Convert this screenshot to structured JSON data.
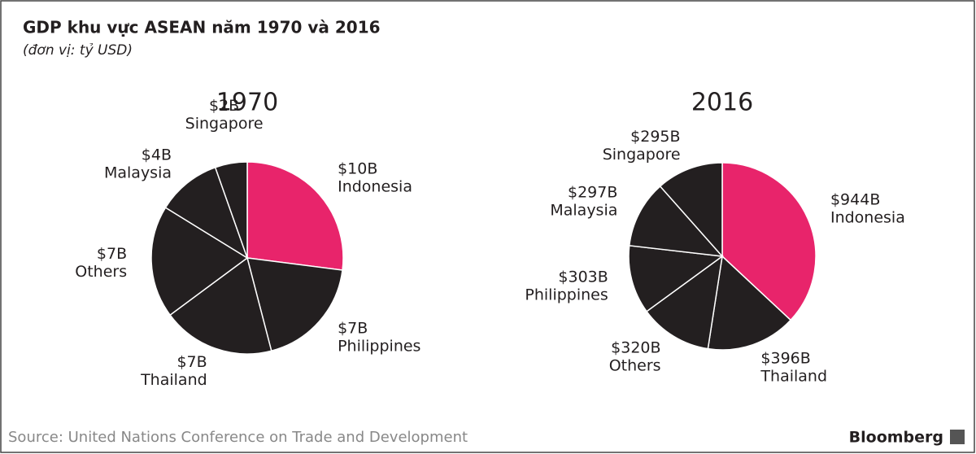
{
  "title": "GDP khu vực ASEAN năm 1970 và 2016",
  "subtitle": "(đơn vị: tỷ USD)",
  "source": "Source: United Nations Conference on Trade and Development",
  "brand": "Bloomberg",
  "chart_data": [
    {
      "type": "pie",
      "title": "1970",
      "categories": [
        "Indonesia",
        "Philippines",
        "Thailand",
        "Others",
        "Malaysia",
        "Singapore"
      ],
      "values": [
        10,
        7,
        7,
        7,
        4,
        2
      ],
      "value_labels": [
        "$10B",
        "$7B",
        "$7B",
        "$7B",
        "$4B",
        "$2B"
      ],
      "colors": [
        "#e8246b",
        "#231f20",
        "#231f20",
        "#231f20",
        "#231f20",
        "#231f20"
      ]
    },
    {
      "type": "pie",
      "title": "2016",
      "categories": [
        "Indonesia",
        "Thailand",
        "Others",
        "Philippines",
        "Malaysia",
        "Singapore"
      ],
      "values": [
        944,
        396,
        320,
        303,
        297,
        295
      ],
      "value_labels": [
        "$944B",
        "$396B",
        "$320B",
        "$303B",
        "$297B",
        "$295B"
      ],
      "colors": [
        "#e8246b",
        "#231f20",
        "#231f20",
        "#231f20",
        "#231f20",
        "#231f20"
      ]
    }
  ]
}
